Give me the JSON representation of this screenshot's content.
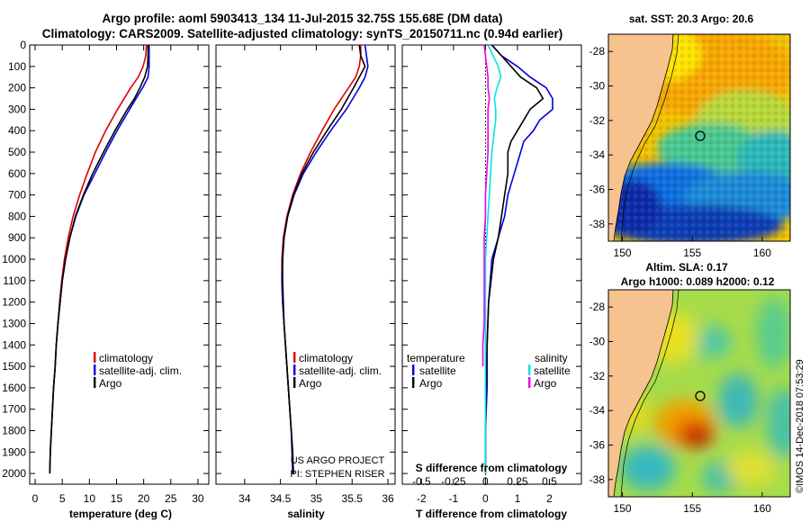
{
  "header": {
    "line1": "Argo profile: aoml 5903413_134 11-Jul-2015 32.75S 155.68E (DM data)",
    "line2": "Climatology: CARS2009. Satellite-adjusted climatology: synTS_20150711.nc (0.94d earlier)"
  },
  "colors": {
    "climatology": "#dd0000",
    "satellite_adj": "#0000dd",
    "argo": "#000000",
    "satellite_salinity": "#00e5e5",
    "argo_salinity": "#ee00ee",
    "land": "#f6c28e"
  },
  "chart_data": [
    {
      "type": "line",
      "id": "temperature",
      "xlabel": "temperature (deg C)",
      "xlim": [
        -1,
        32
      ],
      "xticks": [
        0,
        5,
        10,
        15,
        20,
        25,
        30
      ],
      "ylim": [
        2050,
        0
      ],
      "yticks": [
        0,
        100,
        200,
        300,
        400,
        500,
        600,
        700,
        800,
        900,
        1000,
        1100,
        1200,
        1300,
        1400,
        1500,
        1600,
        1700,
        1800,
        1900,
        2000
      ],
      "legend": [
        "climatology",
        "satellite-adj. clim.",
        "Argo"
      ],
      "series": [
        {
          "name": "climatology",
          "color": "#dd0000",
          "y": [
            0,
            50,
            100,
            150,
            200,
            300,
            400,
            500,
            600,
            700,
            800,
            900,
            1000,
            1100,
            1200,
            1300,
            1400,
            1500,
            1600,
            1700,
            1800,
            1900,
            2000
          ],
          "x": [
            20.5,
            20.4,
            19.9,
            19.0,
            17.6,
            15.2,
            13.0,
            11.1,
            9.6,
            8.2,
            7.0,
            6.1,
            5.4,
            4.9,
            4.5,
            4.2,
            3.9,
            3.7,
            3.4,
            3.2,
            3.0,
            2.8,
            2.7
          ]
        },
        {
          "name": "satellite-adj. clim.",
          "color": "#0000dd",
          "y": [
            0,
            50,
            100,
            150,
            200,
            250,
            300,
            400,
            500,
            600,
            700,
            800,
            900,
            1000,
            1100,
            1200,
            1300,
            1400,
            1500,
            1600,
            1700,
            1800,
            1900,
            2000
          ],
          "x": [
            21.0,
            21.0,
            21.0,
            20.8,
            19.8,
            18.6,
            17.4,
            15.1,
            13.0,
            11.0,
            9.0,
            7.5,
            6.4,
            5.6,
            5.0,
            4.6,
            4.2,
            3.9,
            3.7,
            3.4,
            3.2,
            3.0,
            2.8,
            2.7
          ]
        },
        {
          "name": "Argo",
          "color": "#000000",
          "y": [
            0,
            50,
            100,
            150,
            200,
            250,
            300,
            400,
            500,
            600,
            700,
            800,
            900,
            1000,
            1100,
            1200,
            1300,
            1400,
            1500,
            1600,
            1700,
            1800,
            1900,
            2000
          ],
          "x": [
            20.8,
            20.8,
            20.7,
            20.2,
            19.3,
            18.3,
            17.0,
            14.7,
            12.6,
            10.6,
            8.9,
            7.4,
            6.4,
            5.6,
            5.0,
            4.6,
            4.2,
            3.9,
            3.7,
            3.4,
            3.2,
            3.0,
            2.8,
            2.7
          ]
        }
      ]
    },
    {
      "type": "line",
      "id": "salinity",
      "xlabel": "salinity",
      "xlim": [
        33.6,
        36.1
      ],
      "xticks": [
        34,
        34.5,
        35,
        35.5,
        36
      ],
      "ylim": [
        2050,
        0
      ],
      "legend": [
        "climatology",
        "satellite-adj. clim.",
        "Argo"
      ],
      "credit": [
        "US ARGO PROJECT",
        "PI: STEPHEN RISER"
      ],
      "series": [
        {
          "name": "climatology",
          "color": "#dd0000",
          "y": [
            0,
            50,
            100,
            150,
            200,
            300,
            400,
            500,
            600,
            700,
            800,
            900,
            1000,
            1100,
            1200,
            1300,
            1400,
            1500,
            1600,
            1700,
            1800,
            1900,
            2000
          ],
          "x": [
            35.62,
            35.62,
            35.6,
            35.55,
            35.45,
            35.25,
            35.08,
            34.92,
            34.78,
            34.67,
            34.59,
            34.54,
            34.52,
            34.52,
            34.53,
            34.55,
            34.57,
            34.59,
            34.61,
            34.63,
            34.65,
            34.67,
            34.68
          ]
        },
        {
          "name": "satellite-adj. clim.",
          "color": "#0000dd",
          "y": [
            0,
            50,
            100,
            150,
            200,
            300,
            400,
            500,
            600,
            700,
            800,
            900,
            1000,
            1100,
            1200,
            1300,
            1400,
            1500,
            1600,
            1700,
            1800,
            1900,
            2000
          ],
          "x": [
            35.68,
            35.7,
            35.72,
            35.68,
            35.6,
            35.42,
            35.2,
            35.0,
            34.82,
            34.69,
            34.6,
            34.55,
            34.53,
            34.52,
            34.53,
            34.55,
            34.57,
            34.59,
            34.61,
            34.63,
            34.65,
            34.66,
            34.67
          ]
        },
        {
          "name": "Argo",
          "color": "#000000",
          "y": [
            0,
            50,
            100,
            150,
            200,
            300,
            400,
            500,
            600,
            700,
            800,
            900,
            1000,
            1100,
            1200,
            1300,
            1400,
            1500,
            1600,
            1700,
            1800,
            1900,
            2000
          ],
          "x": [
            35.6,
            35.62,
            35.68,
            35.6,
            35.52,
            35.35,
            35.15,
            34.96,
            34.8,
            34.68,
            34.6,
            34.55,
            34.53,
            34.53,
            34.54,
            34.55,
            34.57,
            34.59,
            34.61,
            34.63,
            34.65,
            34.67,
            34.68
          ]
        }
      ]
    },
    {
      "type": "line",
      "id": "difference",
      "xlabel": "T difference from climatology",
      "xlabel_top": "S difference from climatology",
      "xlim": [
        -2.6,
        3.0
      ],
      "xticks": [
        -2,
        -1,
        0,
        1,
        2
      ],
      "sticks": [
        "-0.5",
        "-0.25",
        "0",
        "0.25",
        "0.5"
      ],
      "legend_temperature": {
        "title": "temperature",
        "items": [
          "satellite",
          "Argo"
        ]
      },
      "legend_salinity": {
        "title": "salinity",
        "items": [
          "satellite",
          "Argo"
        ]
      },
      "series": [
        {
          "name": "satellite",
          "group": "temperature",
          "color": "#0000dd",
          "y": [
            0,
            50,
            100,
            150,
            200,
            250,
            300,
            350,
            400,
            450,
            500,
            600,
            700,
            800,
            900,
            1000,
            1200,
            1400,
            1600,
            1800,
            2000
          ],
          "x": [
            0.2,
            0.5,
            1.0,
            1.4,
            1.9,
            2.1,
            2.1,
            1.7,
            1.5,
            1.2,
            1.1,
            0.9,
            0.7,
            0.6,
            0.4,
            0.2,
            0.1,
            0.05,
            0.05,
            0.0,
            0.0
          ]
        },
        {
          "name": "Argo",
          "group": "temperature",
          "color": "#000000",
          "y": [
            0,
            50,
            100,
            150,
            200,
            250,
            300,
            350,
            400,
            450,
            500,
            600,
            700,
            800,
            900,
            1000,
            1200,
            1400,
            1600,
            1800,
            2000
          ],
          "x": [
            0.2,
            0.5,
            0.8,
            1.1,
            1.6,
            1.8,
            1.4,
            1.2,
            1.0,
            0.8,
            0.7,
            0.7,
            0.6,
            0.5,
            0.4,
            0.25,
            0.1,
            0.05,
            0.02,
            0.0,
            0.0
          ]
        },
        {
          "name": "satellite",
          "group": "salinity",
          "color": "#00e5e5",
          "y": [
            0,
            50,
            100,
            150,
            200,
            250,
            300,
            350,
            400,
            500,
            600,
            700,
            800,
            900,
            1000,
            1200,
            1400,
            1600,
            1800,
            2000
          ],
          "x": [
            0.02,
            0.06,
            0.1,
            0.12,
            0.09,
            0.07,
            0.08,
            0.08,
            0.07,
            0.05,
            0.04,
            0.03,
            0.02,
            0.01,
            0.0,
            0.0,
            0.0,
            0.0,
            0.0,
            0.0
          ]
        },
        {
          "name": "Argo",
          "group": "salinity",
          "color": "#ee00ee",
          "y": [
            0,
            50,
            100,
            150,
            200,
            250,
            300,
            350,
            400,
            500,
            600,
            700,
            800,
            900,
            1000,
            1100,
            1200,
            1300,
            1400,
            1500
          ],
          "x": [
            -0.01,
            0.0,
            0.01,
            0.02,
            0.02,
            0.03,
            0.02,
            0.02,
            0.02,
            0.02,
            0.01,
            0.0,
            0.0,
            -0.01,
            -0.01,
            -0.01,
            -0.01,
            -0.01,
            -0.02,
            -0.02
          ]
        }
      ]
    },
    {
      "type": "heatmap",
      "id": "sst-map",
      "title": "sat. SST: 20.3 Argo: 20.6",
      "xticks": [
        "150",
        "155",
        "160"
      ],
      "yticks": [
        "-28",
        "-30",
        "-32",
        "-34",
        "-36",
        "-38"
      ],
      "lon_range": [
        149,
        162
      ],
      "lat_range": [
        -27,
        -39
      ],
      "argo_position": {
        "lon": 155.68,
        "lat": -32.75
      }
    },
    {
      "type": "heatmap",
      "id": "sla-map",
      "title_line1": "Altim. SLA: 0.17",
      "title_line2": "Argo h1000: 0.089 h2000: 0.12",
      "xticks": [
        "150",
        "155",
        "160"
      ],
      "yticks": [
        "-28",
        "-30",
        "-32",
        "-34",
        "-36",
        "-38"
      ],
      "lon_range": [
        149,
        162
      ],
      "lat_range": [
        -27,
        -39
      ],
      "argo_position": {
        "lon": 155.68,
        "lat": -32.75
      }
    }
  ],
  "footer": {
    "stamp": "©IMOS 14-Dec-2018 07:53:29"
  }
}
